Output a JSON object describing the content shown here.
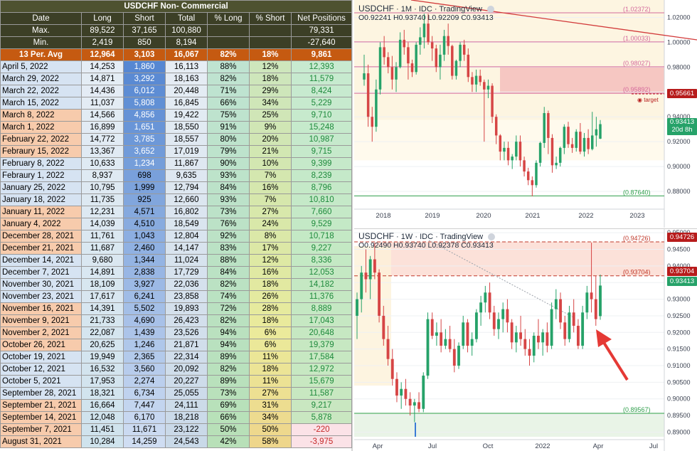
{
  "table": {
    "title": "USDCHF Non- Commercial",
    "headers": [
      "Date",
      "Long",
      "Short",
      "Total",
      "% Long",
      "% Short",
      "Net Positions"
    ],
    "max": {
      "label": "Max.",
      "long": "89,522",
      "short": "37,165",
      "total": "100,880",
      "net": "79,331"
    },
    "min": {
      "label": "Min.",
      "long": "2,419",
      "short": "850",
      "total": "8,194",
      "net": "-27,640"
    },
    "avg": {
      "label": "13 Per. Avg",
      "long": "12,964",
      "short": "3,103",
      "total": "16,067",
      "pct_long": "82%",
      "pct_short": "18%",
      "net": "9,861"
    },
    "rows": [
      {
        "date": "April 5, 2022",
        "long": "14,253",
        "short": "1,860",
        "total": "16,113",
        "pct_long": "88%",
        "pct_short": "12%",
        "net": "12,393"
      },
      {
        "date": "March 29, 2022",
        "long": "14,871",
        "short": "3,292",
        "total": "18,163",
        "pct_long": "82%",
        "pct_short": "18%",
        "net": "11,579"
      },
      {
        "date": "March 22, 2022",
        "long": "14,436",
        "short": "6,012",
        "total": "20,448",
        "pct_long": "71%",
        "pct_short": "29%",
        "net": "8,424"
      },
      {
        "date": "March 15, 2022",
        "long": "11,037",
        "short": "5,808",
        "total": "16,845",
        "pct_long": "66%",
        "pct_short": "34%",
        "net": "5,229"
      },
      {
        "date": "March 8, 2022",
        "long": "14,566",
        "short": "4,856",
        "total": "19,422",
        "pct_long": "75%",
        "pct_short": "25%",
        "net": "9,710"
      },
      {
        "date": "March 1, 2022",
        "long": "16,899",
        "short": "1,651",
        "total": "18,550",
        "pct_long": "91%",
        "pct_short": "9%",
        "net": "15,248"
      },
      {
        "date": "February 22, 2022",
        "long": "14,772",
        "short": "3,785",
        "total": "18,557",
        "pct_long": "80%",
        "pct_short": "20%",
        "net": "10,987"
      },
      {
        "date": "Febraury 15, 2022",
        "long": "13,367",
        "short": "3,652",
        "total": "17,019",
        "pct_long": "79%",
        "pct_short": "21%",
        "net": "9,715"
      },
      {
        "date": "February 8, 2022",
        "long": "10,633",
        "short": "1,234",
        "total": "11,867",
        "pct_long": "90%",
        "pct_short": "10%",
        "net": "9,399"
      },
      {
        "date": "Febraury 1, 2022",
        "long": "8,937",
        "short": "698",
        "total": "9,635",
        "pct_long": "93%",
        "pct_short": "7%",
        "net": "8,239"
      },
      {
        "date": "January 25, 2022",
        "long": "10,795",
        "short": "1,999",
        "total": "12,794",
        "pct_long": "84%",
        "pct_short": "16%",
        "net": "8,796"
      },
      {
        "date": "January 18, 2022",
        "long": "11,735",
        "short": "925",
        "total": "12,660",
        "pct_long": "93%",
        "pct_short": "7%",
        "net": "10,810"
      },
      {
        "date": "January 11, 2022",
        "long": "12,231",
        "short": "4,571",
        "total": "16,802",
        "pct_long": "73%",
        "pct_short": "27%",
        "net": "7,660"
      },
      {
        "date": "January 4, 2022",
        "long": "14,039",
        "short": "4,510",
        "total": "18,549",
        "pct_long": "76%",
        "pct_short": "24%",
        "net": "9,529"
      },
      {
        "date": "December 28, 2021",
        "long": "11,761",
        "short": "1,043",
        "total": "12,804",
        "pct_long": "92%",
        "pct_short": "8%",
        "net": "10,718"
      },
      {
        "date": "December 21, 2021",
        "long": "11,687",
        "short": "2,460",
        "total": "14,147",
        "pct_long": "83%",
        "pct_short": "17%",
        "net": "9,227"
      },
      {
        "date": "December 14, 2021",
        "long": "9,680",
        "short": "1,344",
        "total": "11,024",
        "pct_long": "88%",
        "pct_short": "12%",
        "net": "8,336"
      },
      {
        "date": "December 7, 2021",
        "long": "14,891",
        "short": "2,838",
        "total": "17,729",
        "pct_long": "84%",
        "pct_short": "16%",
        "net": "12,053"
      },
      {
        "date": "November 30, 2021",
        "long": "18,109",
        "short": "3,927",
        "total": "22,036",
        "pct_long": "82%",
        "pct_short": "18%",
        "net": "14,182"
      },
      {
        "date": "November 23, 2021",
        "long": "17,617",
        "short": "6,241",
        "total": "23,858",
        "pct_long": "74%",
        "pct_short": "26%",
        "net": "11,376"
      },
      {
        "date": "November 16, 2021",
        "long": "14,391",
        "short": "5,502",
        "total": "19,893",
        "pct_long": "72%",
        "pct_short": "28%",
        "net": "8,889"
      },
      {
        "date": "November 9, 2021",
        "long": "21,733",
        "short": "4,690",
        "total": "26,423",
        "pct_long": "82%",
        "pct_short": "18%",
        "net": "17,043"
      },
      {
        "date": "November 2, 2021",
        "long": "22,087",
        "short": "1,439",
        "total": "23,526",
        "pct_long": "94%",
        "pct_short": "6%",
        "net": "20,648"
      },
      {
        "date": "October 26, 2021",
        "long": "20,625",
        "short": "1,246",
        "total": "21,871",
        "pct_long": "94%",
        "pct_short": "6%",
        "net": "19,379"
      },
      {
        "date": "October 19, 2021",
        "long": "19,949",
        "short": "2,365",
        "total": "22,314",
        "pct_long": "89%",
        "pct_short": "11%",
        "net": "17,584"
      },
      {
        "date": "October 12, 2021",
        "long": "16,532",
        "short": "3,560",
        "total": "20,092",
        "pct_long": "82%",
        "pct_short": "18%",
        "net": "12,972"
      },
      {
        "date": "October 5, 2021",
        "long": "17,953",
        "short": "2,274",
        "total": "20,227",
        "pct_long": "89%",
        "pct_short": "11%",
        "net": "15,679"
      },
      {
        "date": "September 28, 2021",
        "long": "18,321",
        "short": "6,734",
        "total": "25,055",
        "pct_long": "73%",
        "pct_short": "27%",
        "net": "11,587"
      },
      {
        "date": "September 21, 2021",
        "long": "16,664",
        "short": "7,447",
        "total": "24,111",
        "pct_long": "69%",
        "pct_short": "31%",
        "net": "9,217"
      },
      {
        "date": "September 14, 2021",
        "long": "12,048",
        "short": "6,170",
        "total": "18,218",
        "pct_long": "66%",
        "pct_short": "34%",
        "net": "5,878"
      },
      {
        "date": "September 7, 2021",
        "long": "11,451",
        "short": "11,671",
        "total": "23,122",
        "pct_long": "50%",
        "pct_short": "50%",
        "net": "-220"
      },
      {
        "date": "August 31, 2021",
        "long": "10,284",
        "short": "14,259",
        "total": "24,543",
        "pct_long": "42%",
        "pct_short": "58%",
        "net": "-3,975"
      }
    ]
  },
  "colors": {
    "up": "#26a269",
    "down": "#d64545",
    "net_negative": "#c62828",
    "net_positive": "#1e8a3c"
  },
  "chart_data": [
    {
      "type": "candlestick",
      "symbol": "USDCHF",
      "interval": "1M",
      "source": "IDC",
      "platform": "TradingView",
      "ohlc_text": "O0.92241 H0.93740 L0.92209 C0.93413",
      "x_ticks": [
        "2018",
        "2019",
        "2020",
        "2021",
        "2022",
        "2023"
      ],
      "y_ticks": [
        "0.88000",
        "0.90000",
        "0.92000",
        "0.94000",
        "0.96000",
        "0.98000",
        "1.00000",
        "1.02000"
      ],
      "ylim": [
        0.868,
        1.034
      ],
      "levels": [
        "(1.02372)",
        "(1.00033)",
        "(0.98027)",
        "(0.95892)",
        "(0.87640)"
      ],
      "price_tags": {
        "target": "0.95661",
        "last": "0.93413",
        "countdown": "20d 8h"
      },
      "target_label": "target",
      "candles": [
        [
          0.97,
          0.99,
          0.965,
          0.975
        ],
        [
          0.975,
          0.982,
          0.932,
          0.94
        ],
        [
          0.94,
          0.948,
          0.92,
          0.932
        ],
        [
          0.932,
          0.97,
          0.928,
          0.962
        ],
        [
          0.962,
          1.0,
          0.958,
          0.996
        ],
        [
          0.996,
          1.005,
          0.982,
          0.988
        ],
        [
          0.988,
          0.992,
          0.975,
          0.98
        ],
        [
          0.98,
          0.989,
          0.962,
          0.97
        ],
        [
          0.97,
          0.984,
          0.96,
          0.98
        ],
        [
          0.98,
          1.008,
          0.979,
          1.002
        ],
        [
          1.002,
          1.01,
          0.99,
          0.996
        ],
        [
          0.996,
          1.0,
          0.97,
          0.983
        ],
        [
          0.983,
          0.986,
          0.972,
          0.976
        ],
        [
          0.976,
          1.0,
          0.974,
          0.998
        ],
        [
          0.998,
          1.012,
          0.99,
          1.004
        ],
        [
          1.004,
          1.023,
          0.995,
          1.015
        ],
        [
          1.015,
          1.023,
          0.998,
          1.0
        ],
        [
          1.0,
          1.005,
          0.985,
          0.995
        ],
        [
          0.995,
          0.998,
          0.976,
          0.98
        ],
        [
          0.98,
          0.998,
          0.97,
          0.99
        ],
        [
          0.99,
          1.01,
          0.985,
          1.005
        ],
        [
          1.005,
          1.015,
          0.99,
          0.997
        ],
        [
          0.997,
          0.998,
          0.97,
          0.973
        ],
        [
          0.973,
          0.986,
          0.97,
          0.985
        ],
        [
          0.985,
          1.0,
          0.98,
          0.998
        ],
        [
          0.998,
          1.002,
          0.985,
          0.99
        ],
        [
          0.99,
          0.995,
          0.968,
          0.972
        ],
        [
          0.972,
          0.976,
          0.96,
          0.966
        ],
        [
          0.966,
          0.978,
          0.96,
          0.973
        ],
        [
          0.973,
          0.978,
          0.965,
          0.968
        ],
        [
          0.968,
          0.97,
          0.92,
          0.962
        ],
        [
          0.962,
          0.97,
          0.955,
          0.965
        ],
        [
          0.965,
          0.967,
          0.935,
          0.94
        ],
        [
          0.94,
          0.942,
          0.918,
          0.925
        ],
        [
          0.925,
          0.926,
          0.905,
          0.912
        ],
        [
          0.912,
          0.92,
          0.905,
          0.915
        ],
        [
          0.915,
          0.92,
          0.901,
          0.905
        ],
        [
          0.905,
          0.91,
          0.898,
          0.908
        ],
        [
          0.908,
          0.925,
          0.905,
          0.92
        ],
        [
          0.92,
          0.925,
          0.9,
          0.905
        ],
        [
          0.905,
          0.908,
          0.892,
          0.896
        ],
        [
          0.896,
          0.899,
          0.885,
          0.889
        ],
        [
          0.889,
          0.892,
          0.876,
          0.885
        ],
        [
          0.885,
          0.905,
          0.883,
          0.903
        ],
        [
          0.903,
          0.92,
          0.9,
          0.919
        ],
        [
          0.919,
          0.948,
          0.915,
          0.943
        ],
        [
          0.943,
          0.945,
          0.91,
          0.923
        ],
        [
          0.923,
          0.926,
          0.895,
          0.901
        ],
        [
          0.901,
          0.908,
          0.898,
          0.903
        ],
        [
          0.903,
          0.916,
          0.9,
          0.915
        ],
        [
          0.915,
          0.934,
          0.91,
          0.932
        ],
        [
          0.932,
          0.936,
          0.915,
          0.918
        ],
        [
          0.918,
          0.923,
          0.911,
          0.915
        ],
        [
          0.915,
          0.93,
          0.912,
          0.928
        ],
        [
          0.928,
          0.935,
          0.91,
          0.912
        ],
        [
          0.912,
          0.927,
          0.908,
          0.923
        ],
        [
          0.923,
          0.93,
          0.91,
          0.914
        ],
        [
          0.914,
          0.944,
          0.913,
          0.925
        ],
        [
          0.925,
          0.94,
          0.916,
          0.93
        ],
        [
          0.9224,
          0.9374,
          0.9221,
          0.9341
        ]
      ]
    },
    {
      "type": "candlestick",
      "symbol": "USDCHF",
      "interval": "1W",
      "source": "IDC",
      "platform": "TradingView",
      "ohlc_text": "O0.92490 H0.93740 L0.92378 C0.93413",
      "x_ticks": [
        "Apr",
        "Jul",
        "Oct",
        "2022",
        "Apr",
        "Jul"
      ],
      "y_ticks": [
        "0.89000",
        "0.89500",
        "0.90000",
        "0.90500",
        "0.91000",
        "0.91500",
        "0.92000",
        "0.92500",
        "0.93000",
        "0.93500",
        "0.94000",
        "0.94500",
        "0.95000"
      ],
      "ylim": [
        0.8886,
        0.9511
      ],
      "levels": [
        "(0.94726)",
        "(0.93704)",
        "(0.89567)"
      ],
      "price_tags": {
        "resistance_high": "0.94726",
        "resistance": "0.93704",
        "last": "0.93413"
      },
      "candles": [
        [
          0.925,
          0.932,
          0.918,
          0.93
        ],
        [
          0.93,
          0.94,
          0.926,
          0.938
        ],
        [
          0.938,
          0.945,
          0.932,
          0.936
        ],
        [
          0.936,
          0.943,
          0.93,
          0.942
        ],
        [
          0.942,
          0.947,
          0.936,
          0.938
        ],
        [
          0.938,
          0.939,
          0.923,
          0.925
        ],
        [
          0.925,
          0.928,
          0.916,
          0.918
        ],
        [
          0.918,
          0.922,
          0.91,
          0.912
        ],
        [
          0.912,
          0.915,
          0.904,
          0.906
        ],
        [
          0.906,
          0.908,
          0.899,
          0.901
        ],
        [
          0.901,
          0.905,
          0.897,
          0.903
        ],
        [
          0.903,
          0.906,
          0.898,
          0.9
        ],
        [
          0.9,
          0.902,
          0.895,
          0.898
        ],
        [
          0.898,
          0.9,
          0.893,
          0.899
        ],
        [
          0.899,
          0.902,
          0.896,
          0.897
        ],
        [
          0.897,
          0.908,
          0.896,
          0.907
        ],
        [
          0.907,
          0.926,
          0.906,
          0.924
        ],
        [
          0.924,
          0.926,
          0.918,
          0.919
        ],
        [
          0.919,
          0.923,
          0.916,
          0.92
        ],
        [
          0.92,
          0.924,
          0.914,
          0.916
        ],
        [
          0.916,
          0.921,
          0.915,
          0.918
        ],
        [
          0.918,
          0.922,
          0.914,
          0.915
        ],
        [
          0.915,
          0.918,
          0.908,
          0.91
        ],
        [
          0.91,
          0.917,
          0.909,
          0.916
        ],
        [
          0.916,
          0.925,
          0.915,
          0.923
        ],
        [
          0.923,
          0.924,
          0.914,
          0.916
        ],
        [
          0.916,
          0.92,
          0.913,
          0.918
        ],
        [
          0.918,
          0.927,
          0.917,
          0.926
        ],
        [
          0.926,
          0.931,
          0.922,
          0.929
        ],
        [
          0.929,
          0.934,
          0.926,
          0.932
        ],
        [
          0.932,
          0.935,
          0.924,
          0.926
        ],
        [
          0.926,
          0.928,
          0.919,
          0.921
        ],
        [
          0.921,
          0.926,
          0.918,
          0.924
        ],
        [
          0.924,
          0.929,
          0.92,
          0.927
        ],
        [
          0.927,
          0.93,
          0.92,
          0.923
        ],
        [
          0.923,
          0.924,
          0.915,
          0.917
        ],
        [
          0.917,
          0.922,
          0.914,
          0.92
        ],
        [
          0.92,
          0.925,
          0.916,
          0.918
        ],
        [
          0.918,
          0.921,
          0.913,
          0.915
        ],
        [
          0.915,
          0.918,
          0.91,
          0.913
        ],
        [
          0.913,
          0.92,
          0.911,
          0.919
        ],
        [
          0.919,
          0.924,
          0.915,
          0.917
        ],
        [
          0.917,
          0.921,
          0.913,
          0.92
        ],
        [
          0.92,
          0.923,
          0.914,
          0.916
        ],
        [
          0.916,
          0.929,
          0.915,
          0.927
        ],
        [
          0.927,
          0.933,
          0.924,
          0.93
        ],
        [
          0.93,
          0.932,
          0.921,
          0.923
        ],
        [
          0.923,
          0.925,
          0.916,
          0.918
        ],
        [
          0.918,
          0.928,
          0.917,
          0.926
        ],
        [
          0.926,
          0.93,
          0.92,
          0.922
        ],
        [
          0.922,
          0.924,
          0.915,
          0.916
        ],
        [
          0.916,
          0.928,
          0.915,
          0.926
        ],
        [
          0.926,
          0.934,
          0.924,
          0.932
        ],
        [
          0.932,
          0.947,
          0.926,
          0.93
        ],
        [
          0.93,
          0.937,
          0.922,
          0.924
        ],
        [
          0.9249,
          0.9374,
          0.9238,
          0.9341
        ]
      ]
    }
  ]
}
